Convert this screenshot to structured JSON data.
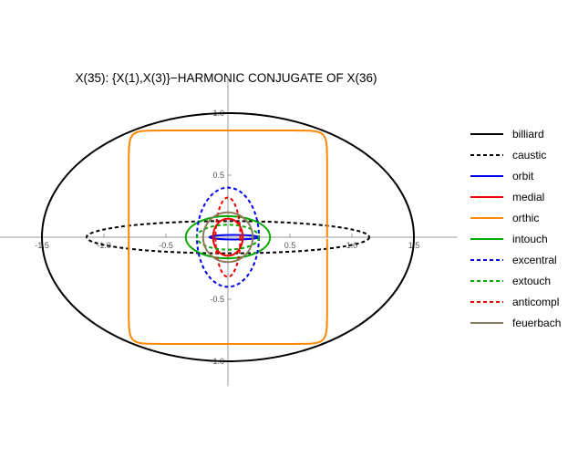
{
  "chart_data": {
    "type": "line",
    "title": "X(35): {X(1),X(3)}−HARMONIC CONJUGATE OF X(36)",
    "xlabel": "",
    "ylabel": "",
    "xlim": [
      -1.85,
      1.85
    ],
    "ylim": [
      -1.2,
      1.3
    ],
    "x_ticks": [
      -1.5,
      -1.0,
      -0.5,
      0.5,
      1.0,
      1.5
    ],
    "x_tick_labels": [
      "-1.5",
      "-1.0",
      "-0.5",
      "0.5",
      "1.0",
      "1.5"
    ],
    "y_ticks": [
      1.0,
      0.5,
      -0.5,
      -1.0
    ],
    "y_tick_labels": [
      "1.0",
      "0.5",
      "-0.5",
      "-1.0"
    ],
    "grid": false,
    "legend_position": "right",
    "series": [
      {
        "name": "billiard",
        "shape": "ellipse",
        "center": [
          0,
          0
        ],
        "a": 1.5,
        "b": 1.0,
        "color": "#000000",
        "dashed": false
      },
      {
        "name": "caustic",
        "shape": "ellipse",
        "center": [
          0,
          0
        ],
        "a": 1.14,
        "b": 0.13,
        "color": "#000000",
        "dashed": true
      },
      {
        "name": "orbit",
        "shape": "ellipse",
        "center": [
          0.05,
          0
        ],
        "a": 0.2,
        "b": 0.018,
        "color": "#0000ee",
        "dashed": false
      },
      {
        "name": "medial",
        "shape": "ellipse",
        "center": [
          0,
          0
        ],
        "a": 0.12,
        "b": 0.15,
        "color": "#ee0000",
        "dashed": false
      },
      {
        "name": "orthic",
        "shape": "supercurve",
        "center": [
          0,
          0
        ],
        "a": 0.8,
        "b": 0.86,
        "color": "#ff8800",
        "dashed": false
      },
      {
        "name": "intouch",
        "shape": "ellipse",
        "center": [
          0,
          0
        ],
        "a": 0.34,
        "b": 0.17,
        "color": "#00aa00",
        "dashed": false
      },
      {
        "name": "excentral",
        "shape": "ellipse",
        "center": [
          0,
          0
        ],
        "a": 0.25,
        "b": 0.4,
        "color": "#0000ee",
        "dashed": true
      },
      {
        "name": "extouch",
        "shape": "ellipse",
        "center": [
          0,
          0
        ],
        "a": 0.25,
        "b": 0.1,
        "color": "#00aa00",
        "dashed": true
      },
      {
        "name": "anticompl",
        "shape": "ellipse",
        "center": [
          0,
          0
        ],
        "a": 0.1,
        "b": 0.32,
        "color": "#ee0000",
        "dashed": true
      },
      {
        "name": "feuerbach",
        "shape": "ellipse",
        "center": [
          0,
          0
        ],
        "a": 0.2,
        "b": 0.2,
        "color": "#8b7d5b",
        "dashed": false
      }
    ]
  }
}
